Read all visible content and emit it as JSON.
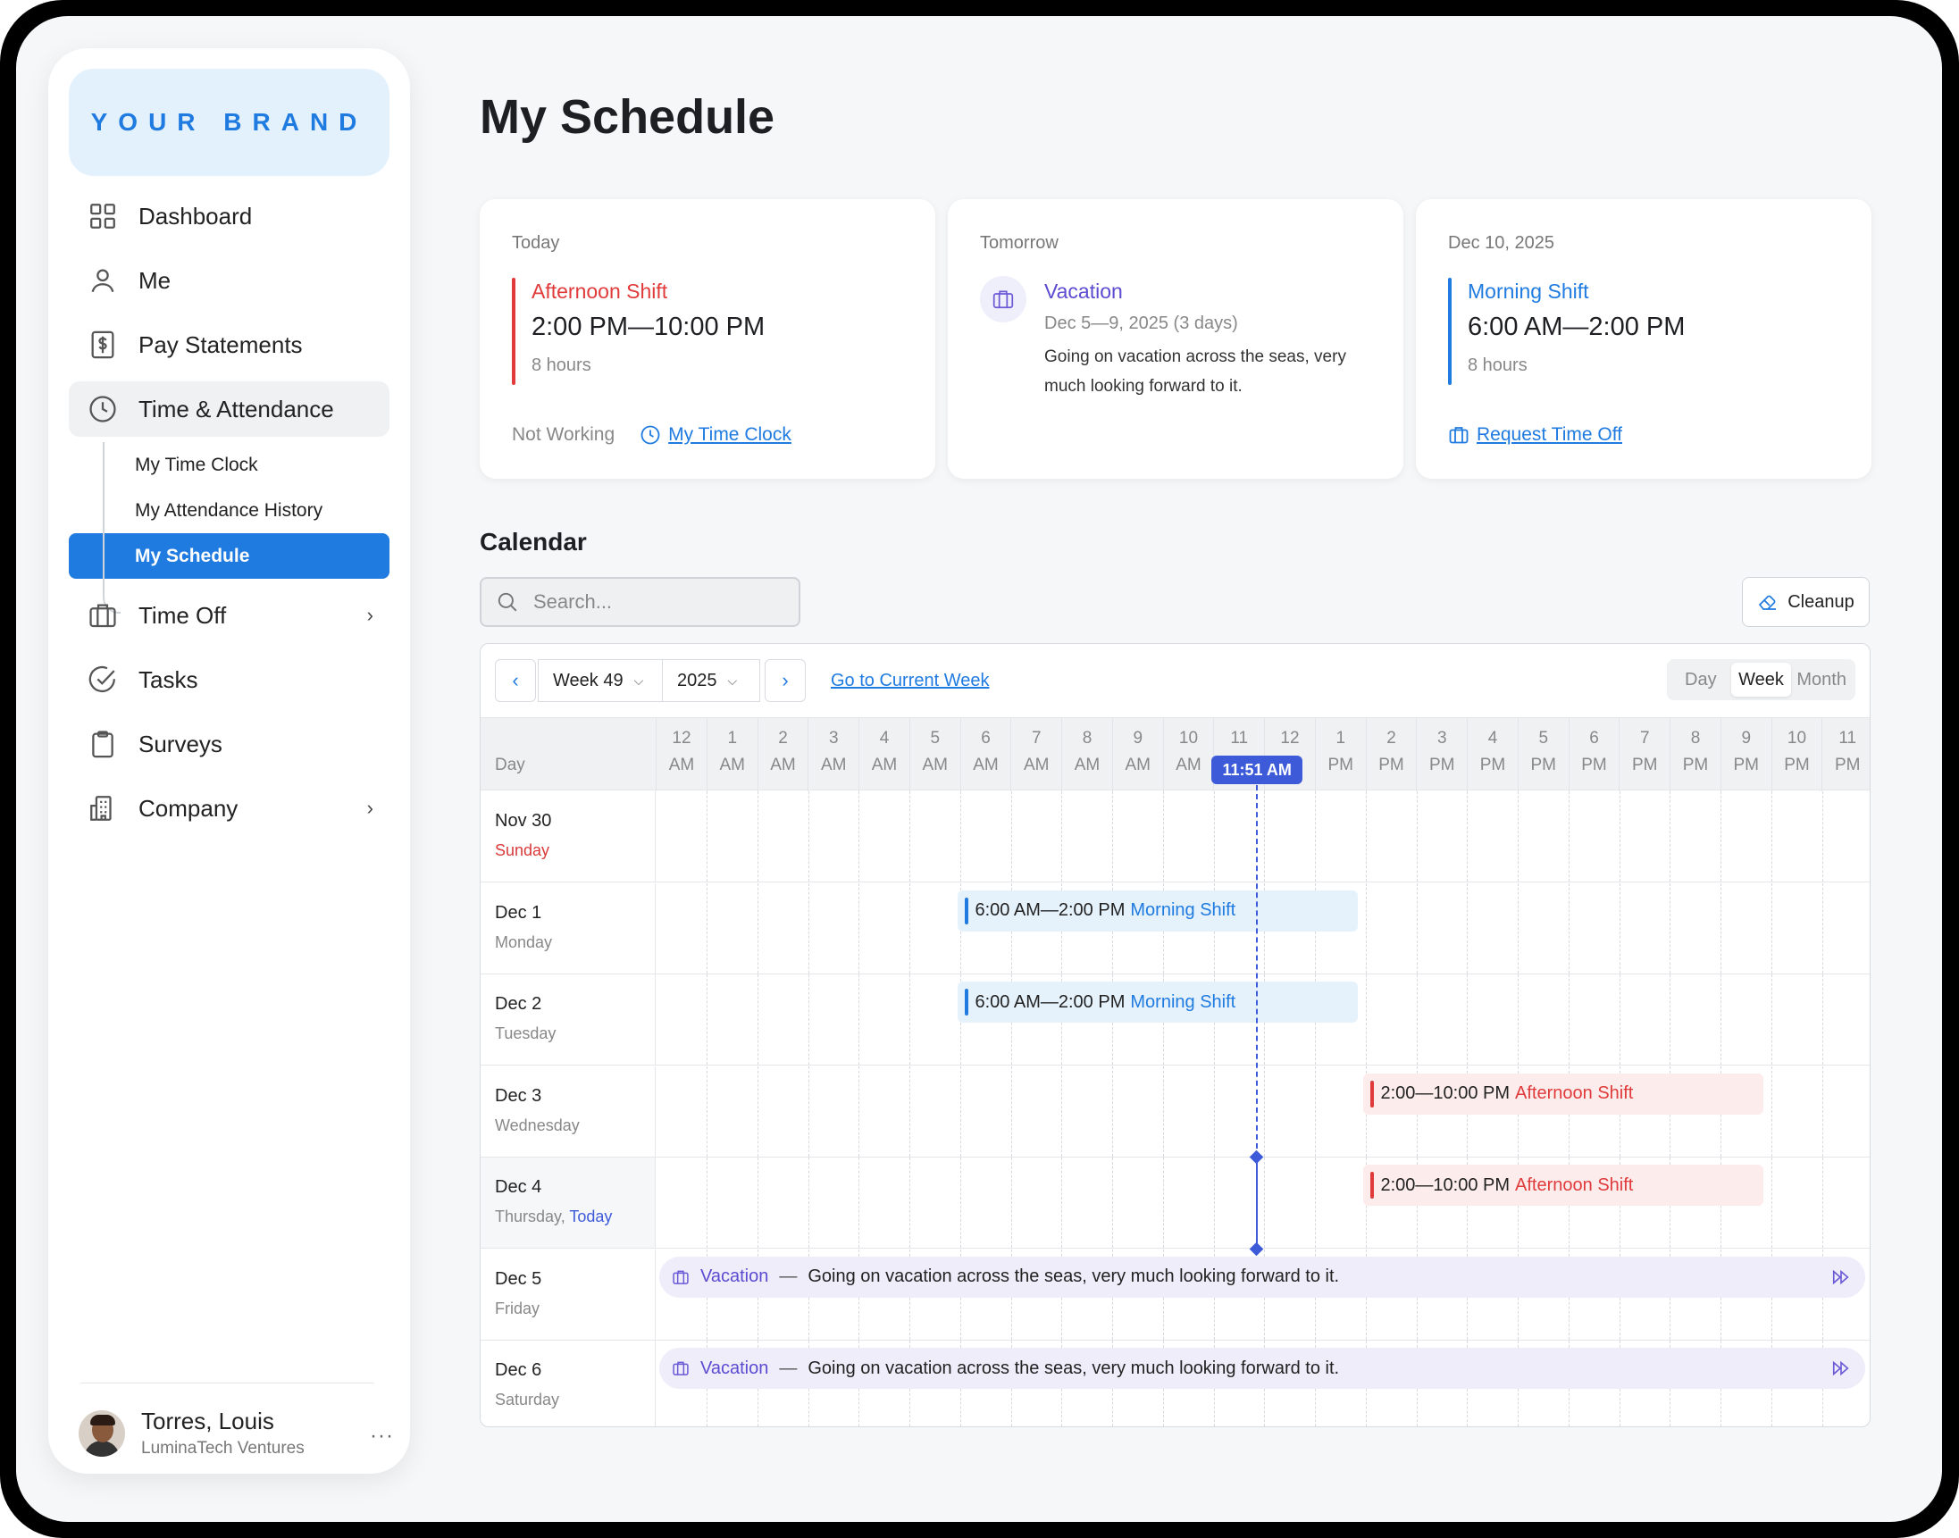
{
  "brand": "YOUR BRAND",
  "nav": {
    "items": [
      {
        "label": "Dashboard",
        "icon": "grid-icon"
      },
      {
        "label": "Me",
        "icon": "user-icon"
      },
      {
        "label": "Pay Statements",
        "icon": "dollar-document-icon"
      },
      {
        "label": "Time & Attendance",
        "icon": "clock-icon"
      },
      {
        "label": "Time Off",
        "icon": "suitcase-icon"
      },
      {
        "label": "Tasks",
        "icon": "check-circle-icon"
      },
      {
        "label": "Surveys",
        "icon": "clipboard-icon"
      },
      {
        "label": "Company",
        "icon": "building-icon"
      }
    ],
    "sub_items": [
      "My Time Clock",
      "My Attendance History",
      "My Schedule"
    ]
  },
  "user": {
    "name": "Torres, Louis",
    "org": "LuminaTech Ventures",
    "more": "···"
  },
  "page_title": "My Schedule",
  "cards": {
    "today": {
      "label": "Today",
      "shift": "Afternoon Shift",
      "time": "2:00 PM—10:00 PM",
      "hours": "8 hours",
      "status": "Not Working",
      "link": "My Time Clock"
    },
    "tomorrow": {
      "label": "Tomorrow",
      "title": "Vacation",
      "dates": "Dec 5—9, 2025 (3 days)",
      "desc": "Going on vacation across the seas, very much looking forward to it."
    },
    "later": {
      "label": "Dec 10, 2025",
      "shift": "Morning Shift",
      "time": "6:00 AM—2:00 PM",
      "hours": "8 hours",
      "link": "Request Time Off"
    }
  },
  "calendar": {
    "title": "Calendar",
    "search_placeholder": "Search...",
    "cleanup": "Cleanup",
    "week": "Week 49",
    "year": "2025",
    "goto": "Go to Current Week",
    "views": [
      "Day",
      "Week",
      "Month"
    ],
    "active_view": "Week",
    "day_header": "Day",
    "now": "11:51 AM",
    "hours": [
      [
        "12",
        "AM"
      ],
      [
        "1",
        "AM"
      ],
      [
        "2",
        "AM"
      ],
      [
        "3",
        "AM"
      ],
      [
        "4",
        "AM"
      ],
      [
        "5",
        "AM"
      ],
      [
        "6",
        "AM"
      ],
      [
        "7",
        "AM"
      ],
      [
        "8",
        "AM"
      ],
      [
        "9",
        "AM"
      ],
      [
        "10",
        "AM"
      ],
      [
        "11",
        "AM"
      ],
      [
        "12",
        "PM"
      ],
      [
        "1",
        "PM"
      ],
      [
        "2",
        "PM"
      ],
      [
        "3",
        "PM"
      ],
      [
        "4",
        "PM"
      ],
      [
        "5",
        "PM"
      ],
      [
        "6",
        "PM"
      ],
      [
        "7",
        "PM"
      ],
      [
        "8",
        "PM"
      ],
      [
        "9",
        "PM"
      ],
      [
        "10",
        "PM"
      ],
      [
        "11",
        "PM"
      ]
    ],
    "rows": [
      {
        "date": "Nov 30",
        "dow": "Sunday"
      },
      {
        "date": "Dec 1",
        "dow": "Monday",
        "shift": {
          "time": "6:00 AM—2:00 PM",
          "name": "Morning Shift"
        }
      },
      {
        "date": "Dec 2",
        "dow": "Tuesday",
        "shift": {
          "time": "6:00 AM—2:00 PM",
          "name": "Morning Shift"
        }
      },
      {
        "date": "Dec 3",
        "dow": "Wednesday",
        "shift": {
          "time": "2:00—10:00 PM",
          "name": "Afternoon Shift"
        }
      },
      {
        "date": "Dec 4",
        "dow": "Thursday,",
        "today": "Today",
        "shift": {
          "time": "2:00—10:00 PM",
          "name": "Afternoon Shift"
        }
      },
      {
        "date": "Dec 5",
        "dow": "Friday",
        "vacation": {
          "name": "Vacation",
          "dash": "—",
          "desc": "Going on vacation across the seas, very much looking forward to it."
        }
      },
      {
        "date": "Dec 6",
        "dow": "Saturday",
        "vacation": {
          "name": "Vacation",
          "dash": "—",
          "desc": "Going on vacation across the seas, very much looking forward to it."
        }
      }
    ]
  }
}
